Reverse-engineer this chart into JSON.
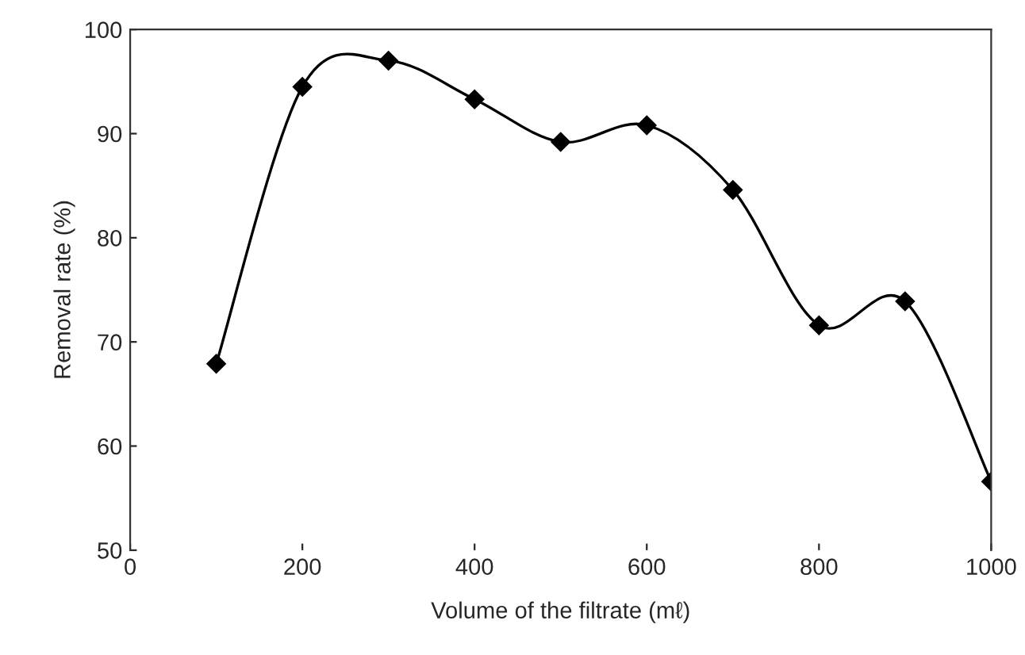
{
  "chart_data": {
    "type": "line",
    "xlabel": "Volume of the filtrate (mℓ)",
    "ylabel": "Removal rate (%)",
    "x": [
      100,
      200,
      300,
      400,
      500,
      600,
      700,
      800,
      900,
      1000
    ],
    "series": [
      {
        "color": "#000000",
        "values": [
          67.9,
          94.5,
          97.0,
          93.3,
          89.2,
          90.8,
          84.6,
          71.6,
          73.9,
          56.6
        ]
      }
    ],
    "xlim": [
      0,
      1000
    ],
    "xticks": [
      0,
      200,
      400,
      600,
      800,
      1000
    ],
    "ylim": [
      50,
      100
    ],
    "yticks": [
      50,
      60,
      70,
      80,
      90,
      100
    ],
    "marker": "diamond",
    "line_style": "solid",
    "grid": false,
    "legend": false
  }
}
